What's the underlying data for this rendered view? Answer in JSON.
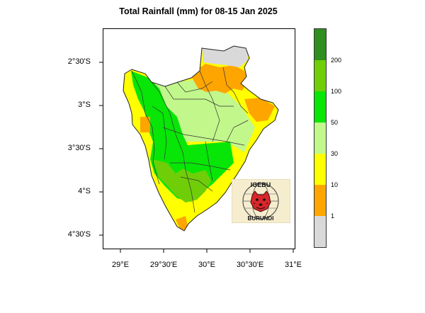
{
  "title": "Total Rainfall (mm) for 08-15 Jan 2025",
  "axes": {
    "y_labels": [
      "2°30'S",
      "3°S",
      "3°30'S",
      "4°S",
      "4°30'S"
    ],
    "x_labels": [
      "29°E",
      "29°30'E",
      "30°E",
      "30°30'E",
      "31°E"
    ]
  },
  "legend": {
    "tick_labels": [
      "200",
      "100",
      "50",
      "30",
      "10",
      "1"
    ],
    "colors": [
      "#2f8f1f",
      "#6fce08",
      "#07e607",
      "#c2f78c",
      "#ffff00",
      "#ffa500",
      "#d9d9d9"
    ]
  },
  "logo": {
    "text_top": "IGEBU",
    "text_bottom": "BURUNDI"
  }
}
